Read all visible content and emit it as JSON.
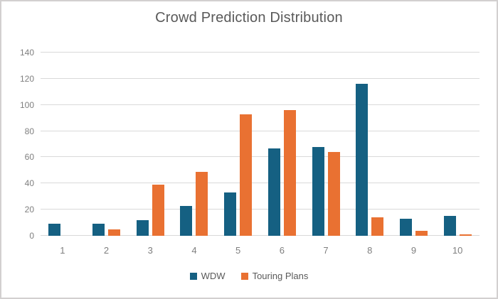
{
  "window": {
    "background_color": "#ffffff",
    "border_color": "#d2d0d0"
  },
  "chart_data": {
    "type": "bar",
    "title": "Crowd Prediction Distribution",
    "categories": [
      "1",
      "2",
      "3",
      "4",
      "5",
      "6",
      "7",
      "8",
      "9",
      "10"
    ],
    "series": [
      {
        "name": "WDW",
        "color": "#156082",
        "values": [
          9,
          9,
          12,
          23,
          33,
          67,
          68,
          116,
          13,
          15
        ]
      },
      {
        "name": "Touring Plans",
        "color": "#e97132",
        "values": [
          0,
          5,
          39,
          49,
          93,
          96,
          64,
          14,
          4,
          1
        ]
      }
    ],
    "xlabel": "",
    "ylabel": "",
    "ylim": [
      0,
      140
    ],
    "yticks": [
      0,
      20,
      40,
      60,
      80,
      100,
      120,
      140
    ],
    "grid": true,
    "gridline_color": "#d9d9d9",
    "tick_label_color": "#7f7f7f",
    "title_color": "#595959",
    "legend_position": "bottom"
  }
}
